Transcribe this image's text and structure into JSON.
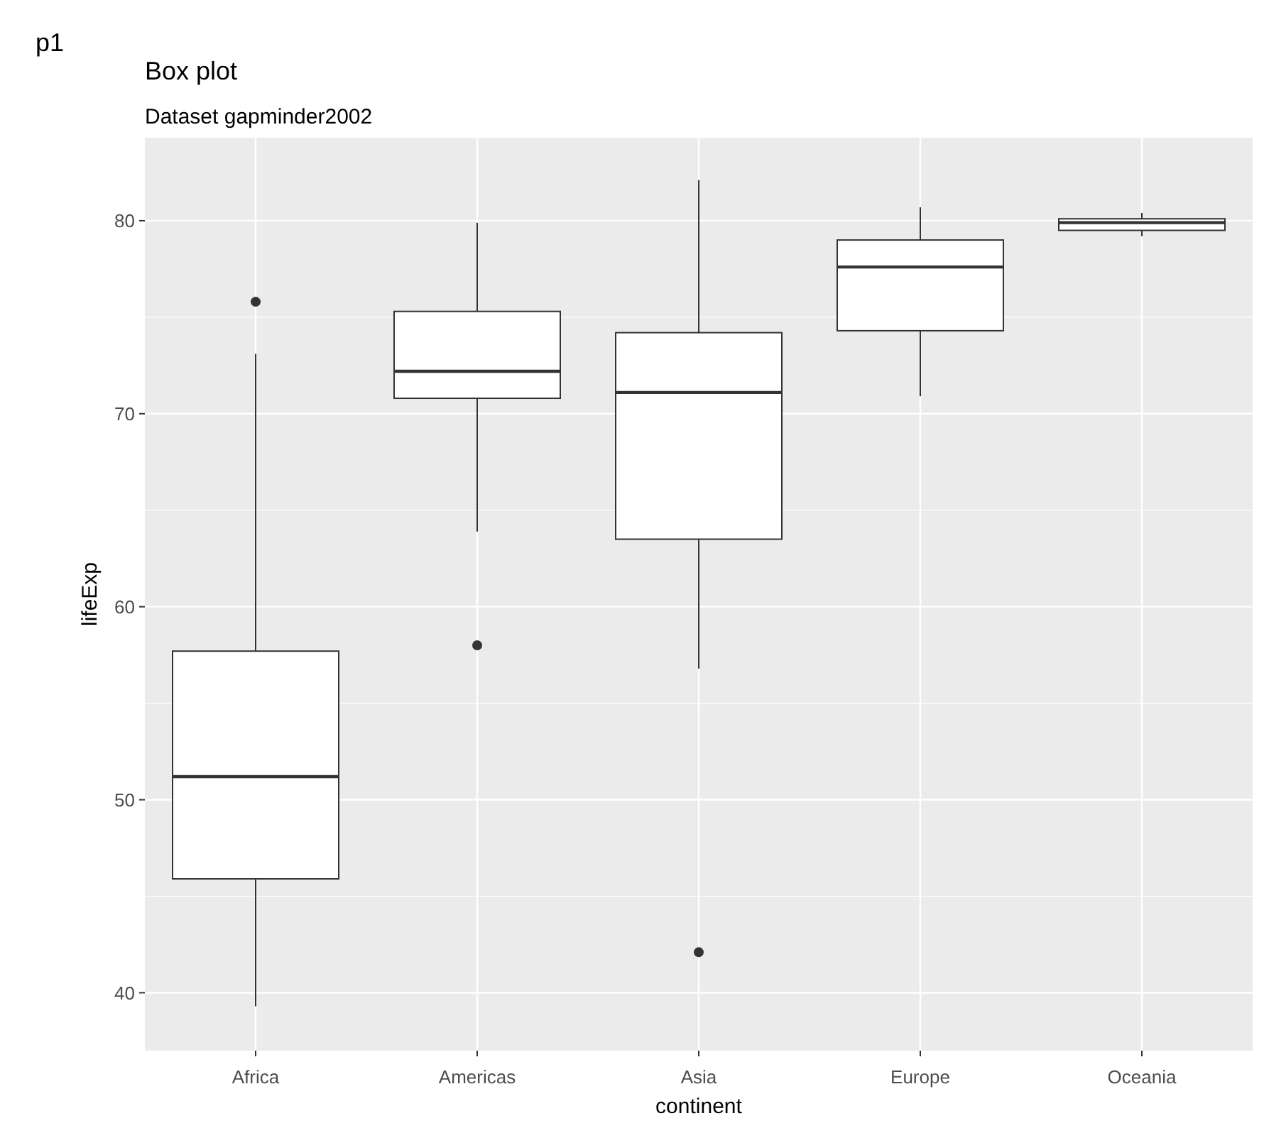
{
  "chart_data": {
    "type": "box",
    "title": "Box plot",
    "subtitle": "Dataset gapminder2002",
    "xlabel": "continent",
    "ylabel": "lifeExp",
    "annotations": [
      "p1"
    ],
    "categories": [
      "Africa",
      "Americas",
      "Asia",
      "Europe",
      "Oceania"
    ],
    "boxes": [
      {
        "low": 39.3,
        "q1": 45.9,
        "median": 51.2,
        "q3": 57.7,
        "high": 73.1,
        "outliers": [
          75.8
        ]
      },
      {
        "low": 63.9,
        "q1": 70.8,
        "median": 72.2,
        "q3": 75.3,
        "high": 79.9,
        "outliers": [
          58.0
        ]
      },
      {
        "low": 56.8,
        "q1": 63.5,
        "median": 71.1,
        "q3": 74.2,
        "high": 82.1,
        "outliers": [
          42.1
        ]
      },
      {
        "low": 70.9,
        "q1": 74.3,
        "median": 77.6,
        "q3": 79.0,
        "high": 80.7
      },
      {
        "low": 79.2,
        "q1": 79.5,
        "median": 79.9,
        "q3": 80.1,
        "high": 80.4
      }
    ],
    "ylim": [
      37.0,
      84.3
    ],
    "yticks": [
      40,
      50,
      60,
      70,
      80
    ],
    "grid": true
  }
}
